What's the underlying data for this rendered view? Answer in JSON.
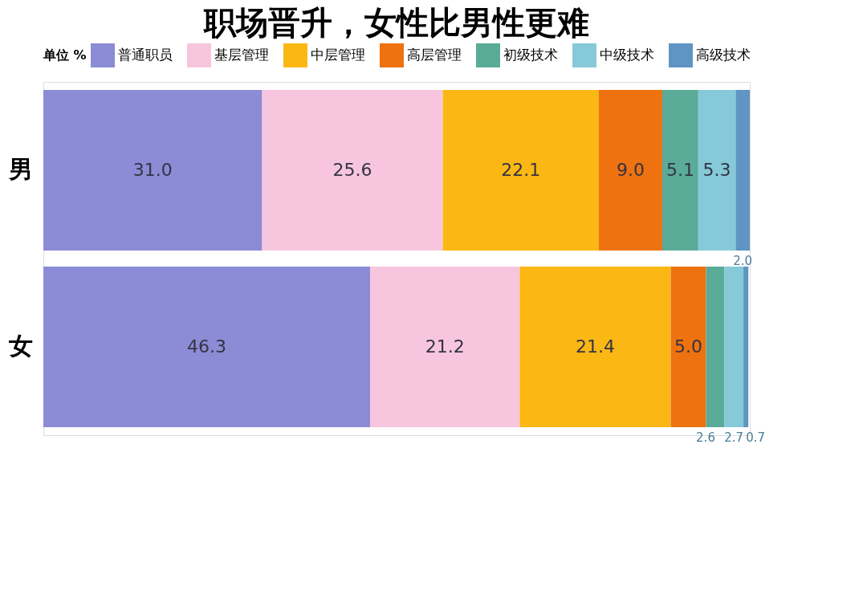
{
  "chart_data": {
    "type": "bar",
    "title": "职场晋升，女性比男性更难",
    "legend_title": "单位 %",
    "orientation": "horizontal",
    "stacked": true,
    "legend": "top",
    "grid": false,
    "categories": [
      "男",
      "女"
    ],
    "series": [
      {
        "name": "普通职员",
        "color": "#8b8bd6",
        "values": [
          31.0,
          46.3
        ],
        "value_labels": [
          "31.0",
          "46.3"
        ]
      },
      {
        "name": "基层管理",
        "color": "#f7c6de",
        "values": [
          25.6,
          21.2
        ],
        "value_labels": [
          "25.6",
          "21.2"
        ]
      },
      {
        "name": "中层管理",
        "color": "#fbb714",
        "values": [
          22.1,
          21.4
        ],
        "value_labels": [
          "22.1",
          "21.4"
        ]
      },
      {
        "name": "高层管理",
        "color": "#ee720f",
        "values": [
          9.0,
          5.0
        ],
        "value_labels": [
          "9.0",
          "5.0"
        ]
      },
      {
        "name": "初级技术",
        "color": "#5aab98",
        "values": [
          5.1,
          2.6
        ],
        "value_labels": [
          "5.1",
          "2.6"
        ]
      },
      {
        "name": "中级技术",
        "color": "#86c9d8",
        "values": [
          5.3,
          2.7
        ],
        "value_labels": [
          "5.3",
          "2.7"
        ]
      },
      {
        "name": "高级技术",
        "color": "#5f95c2",
        "values": [
          2.0,
          0.7
        ],
        "value_labels": [
          "2.0",
          "0.7"
        ]
      }
    ]
  }
}
